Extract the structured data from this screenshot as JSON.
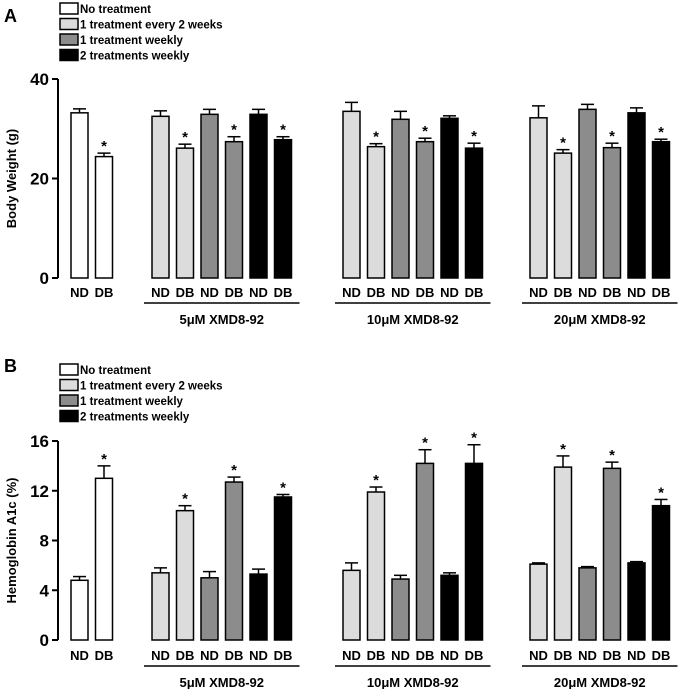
{
  "colors": {
    "none": "#ffffff",
    "biweekly": "#dcdcdc",
    "weekly": "#8c8c8c",
    "twice": "#000000"
  },
  "chart_data": [
    {
      "type": "bar",
      "panel": "A",
      "ylabel": "Body Weight (g)",
      "ylim": [
        0,
        40
      ],
      "yticks": [
        "0",
        "20",
        "40"
      ],
      "legend": [
        "No treatment",
        "1 treatment every 2 weeks",
        "1 treatment weekly",
        "2 treatments weekly"
      ],
      "group_labels": [
        "5μM XMD8-92",
        "10μM XMD8-92",
        "20μM XMD8-92"
      ],
      "bars": [
        {
          "group": 0,
          "treatment": "none",
          "category": "ND",
          "value": 33.2,
          "err": 0.8,
          "sig": ""
        },
        {
          "group": 0,
          "treatment": "none",
          "category": "DB",
          "value": 24.4,
          "err": 0.7,
          "sig": "*"
        },
        {
          "group": 1,
          "treatment": "biweekly",
          "category": "ND",
          "value": 32.5,
          "err": 1.1,
          "sig": ""
        },
        {
          "group": 1,
          "treatment": "biweekly",
          "category": "DB",
          "value": 26.1,
          "err": 0.8,
          "sig": "*"
        },
        {
          "group": 1,
          "treatment": "weekly",
          "category": "ND",
          "value": 32.9,
          "err": 1.0,
          "sig": ""
        },
        {
          "group": 1,
          "treatment": "weekly",
          "category": "DB",
          "value": 27.4,
          "err": 1.0,
          "sig": "*"
        },
        {
          "group": 1,
          "treatment": "twice",
          "category": "ND",
          "value": 32.9,
          "err": 1.0,
          "sig": ""
        },
        {
          "group": 1,
          "treatment": "twice",
          "category": "DB",
          "value": 27.8,
          "err": 0.6,
          "sig": "*"
        },
        {
          "group": 2,
          "treatment": "biweekly",
          "category": "ND",
          "value": 33.5,
          "err": 1.8,
          "sig": ""
        },
        {
          "group": 2,
          "treatment": "biweekly",
          "category": "DB",
          "value": 26.4,
          "err": 0.6,
          "sig": "*"
        },
        {
          "group": 2,
          "treatment": "weekly",
          "category": "ND",
          "value": 31.9,
          "err": 1.6,
          "sig": ""
        },
        {
          "group": 2,
          "treatment": "weekly",
          "category": "DB",
          "value": 27.4,
          "err": 0.7,
          "sig": "*"
        },
        {
          "group": 2,
          "treatment": "twice",
          "category": "ND",
          "value": 32.1,
          "err": 0.5,
          "sig": ""
        },
        {
          "group": 2,
          "treatment": "twice",
          "category": "DB",
          "value": 26.1,
          "err": 1.0,
          "sig": "*"
        },
        {
          "group": 3,
          "treatment": "biweekly",
          "category": "ND",
          "value": 32.2,
          "err": 2.4,
          "sig": ""
        },
        {
          "group": 3,
          "treatment": "biweekly",
          "category": "DB",
          "value": 25.1,
          "err": 0.7,
          "sig": "*"
        },
        {
          "group": 3,
          "treatment": "weekly",
          "category": "ND",
          "value": 33.9,
          "err": 1.0,
          "sig": ""
        },
        {
          "group": 3,
          "treatment": "weekly",
          "category": "DB",
          "value": 26.2,
          "err": 0.9,
          "sig": "*"
        },
        {
          "group": 3,
          "treatment": "twice",
          "category": "ND",
          "value": 33.2,
          "err": 1.0,
          "sig": ""
        },
        {
          "group": 3,
          "treatment": "twice",
          "category": "DB",
          "value": 27.4,
          "err": 0.5,
          "sig": "*"
        }
      ]
    },
    {
      "type": "bar",
      "panel": "B",
      "ylabel": "Hemoglobin A1c (%)",
      "ylim": [
        0,
        16
      ],
      "yticks": [
        "0",
        "4",
        "8",
        "12",
        "16"
      ],
      "legend": [
        "No treatment",
        "1 treatment every 2 weeks",
        "1 treatment weekly",
        "2 treatments weekly"
      ],
      "group_labels": [
        "5μM XMD8-92",
        "10μM XMD8-92",
        "20μM XMD8-92"
      ],
      "bars": [
        {
          "group": 0,
          "treatment": "none",
          "category": "ND",
          "value": 4.8,
          "err": 0.3,
          "sig": ""
        },
        {
          "group": 0,
          "treatment": "none",
          "category": "DB",
          "value": 13.0,
          "err": 1.0,
          "sig": "*"
        },
        {
          "group": 1,
          "treatment": "biweekly",
          "category": "ND",
          "value": 5.4,
          "err": 0.4,
          "sig": ""
        },
        {
          "group": 1,
          "treatment": "biweekly",
          "category": "DB",
          "value": 10.4,
          "err": 0.4,
          "sig": "*"
        },
        {
          "group": 1,
          "treatment": "weekly",
          "category": "ND",
          "value": 5.0,
          "err": 0.5,
          "sig": ""
        },
        {
          "group": 1,
          "treatment": "weekly",
          "category": "DB",
          "value": 12.7,
          "err": 0.4,
          "sig": "*"
        },
        {
          "group": 1,
          "treatment": "twice",
          "category": "ND",
          "value": 5.3,
          "err": 0.4,
          "sig": ""
        },
        {
          "group": 1,
          "treatment": "twice",
          "category": "DB",
          "value": 11.5,
          "err": 0.2,
          "sig": "*"
        },
        {
          "group": 2,
          "treatment": "biweekly",
          "category": "ND",
          "value": 5.6,
          "err": 0.6,
          "sig": ""
        },
        {
          "group": 2,
          "treatment": "biweekly",
          "category": "DB",
          "value": 11.9,
          "err": 0.4,
          "sig": "*"
        },
        {
          "group": 2,
          "treatment": "weekly",
          "category": "ND",
          "value": 4.9,
          "err": 0.3,
          "sig": ""
        },
        {
          "group": 2,
          "treatment": "weekly",
          "category": "DB",
          "value": 14.2,
          "err": 1.1,
          "sig": "*"
        },
        {
          "group": 2,
          "treatment": "twice",
          "category": "ND",
          "value": 5.2,
          "err": 0.2,
          "sig": ""
        },
        {
          "group": 2,
          "treatment": "twice",
          "category": "DB",
          "value": 14.2,
          "err": 1.5,
          "sig": "*"
        },
        {
          "group": 3,
          "treatment": "biweekly",
          "category": "ND",
          "value": 6.1,
          "err": 0.1,
          "sig": ""
        },
        {
          "group": 3,
          "treatment": "biweekly",
          "category": "DB",
          "value": 13.9,
          "err": 0.9,
          "sig": "*"
        },
        {
          "group": 3,
          "treatment": "weekly",
          "category": "ND",
          "value": 5.8,
          "err": 0.1,
          "sig": ""
        },
        {
          "group": 3,
          "treatment": "weekly",
          "category": "DB",
          "value": 13.8,
          "err": 0.5,
          "sig": "*"
        },
        {
          "group": 3,
          "treatment": "twice",
          "category": "ND",
          "value": 6.2,
          "err": 0.1,
          "sig": ""
        },
        {
          "group": 3,
          "treatment": "twice",
          "category": "DB",
          "value": 10.8,
          "err": 0.5,
          "sig": "*"
        }
      ]
    }
  ]
}
